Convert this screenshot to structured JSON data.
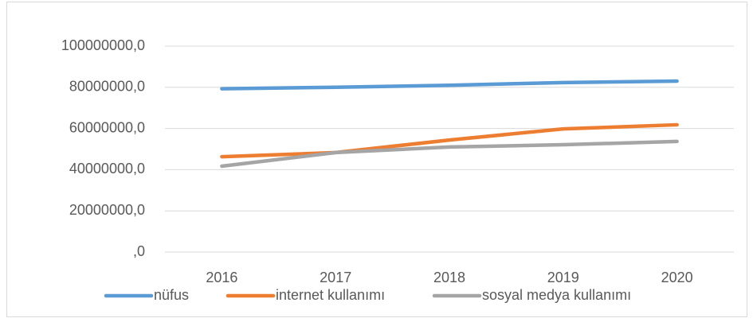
{
  "chart_data": {
    "type": "line",
    "categories": [
      "2016",
      "2017",
      "2018",
      "2019",
      "2020"
    ],
    "series": [
      {
        "name": "nüfus",
        "color": "#5b9bd5",
        "values": [
          79300000,
          80000000,
          81000000,
          82300000,
          83000000
        ]
      },
      {
        "name": "internet kullanımı",
        "color": "#ed7d31",
        "values": [
          46300000,
          48300000,
          54400000,
          59800000,
          61800000
        ]
      },
      {
        "name": "sosyal medya kullanımı",
        "color": "#a5a5a5",
        "values": [
          41700000,
          48300000,
          51000000,
          52100000,
          53700000
        ]
      }
    ],
    "ylim": [
      0,
      100000000
    ],
    "yticks": [
      {
        "value": 0,
        "label": ",0"
      },
      {
        "value": 20000000,
        "label": "20000000,0"
      },
      {
        "value": 40000000,
        "label": "40000000,0"
      },
      {
        "value": 60000000,
        "label": "60000000,0"
      },
      {
        "value": 80000000,
        "label": "80000000,0"
      },
      {
        "value": 100000000,
        "label": "100000000,0"
      }
    ],
    "grid": true,
    "legend": "bottom"
  }
}
